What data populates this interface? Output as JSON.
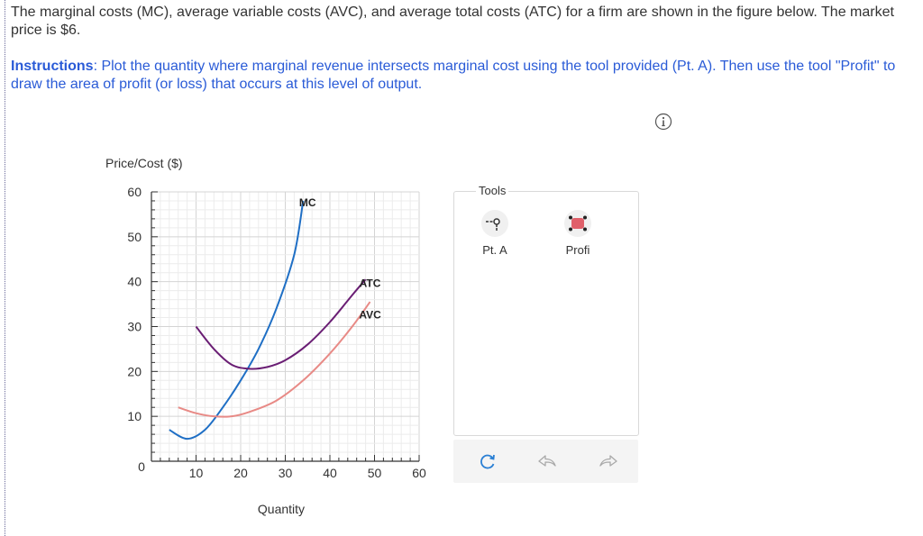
{
  "question": {
    "text": "The marginal costs (MC), average variable costs (AVC), and average total costs (ATC) for a firm are shown in the figure below. The market price is $6."
  },
  "instructions": {
    "lead": "Instructions",
    "text": ": Plot the quantity where marginal revenue intersects marginal cost using the tool provided (Pt. A). Then use the tool \"Profit\" to draw the area of profit (or loss) that occurs at this level of output."
  },
  "info_icon": "info-circle-icon",
  "tools": {
    "title": "Tools",
    "items": [
      {
        "label": "Pt. A",
        "icon": "point-tool-icon"
      },
      {
        "label": "Profi",
        "icon": "profit-area-tool-icon"
      }
    ],
    "actions": [
      {
        "name": "reset",
        "icon": "reset-icon"
      },
      {
        "name": "undo",
        "icon": "undo-icon"
      },
      {
        "name": "redo",
        "icon": "redo-icon"
      }
    ]
  },
  "chart_data": {
    "type": "line",
    "ylabel": "Price/Cost ($)",
    "xlabel": "Quantity",
    "xlim": [
      0,
      60
    ],
    "ylim": [
      0,
      60
    ],
    "x_ticks": [
      10,
      20,
      30,
      40,
      50,
      60
    ],
    "y_ticks": [
      10,
      20,
      30,
      40,
      50,
      60
    ],
    "origin_label": "0",
    "grid": true,
    "series": [
      {
        "name": "MC",
        "color": "#1f6fc5",
        "points": [
          [
            4,
            7
          ],
          [
            8,
            5
          ],
          [
            12,
            7
          ],
          [
            16,
            12
          ],
          [
            20,
            18
          ],
          [
            24,
            25
          ],
          [
            28,
            34
          ],
          [
            32,
            46
          ],
          [
            34,
            58
          ]
        ]
      },
      {
        "name": "ATC",
        "color": "#6a1e74",
        "points": [
          [
            10,
            30
          ],
          [
            14,
            25
          ],
          [
            18,
            21.5
          ],
          [
            22,
            20.6
          ],
          [
            26,
            21
          ],
          [
            30,
            22.5
          ],
          [
            35,
            26
          ],
          [
            40,
            31
          ],
          [
            45,
            37
          ],
          [
            48,
            40.5
          ]
        ]
      },
      {
        "name": "AVC",
        "color": "#e88a86",
        "points": [
          [
            6,
            12
          ],
          [
            10,
            10.7
          ],
          [
            14,
            10
          ],
          [
            18,
            10
          ],
          [
            22,
            11
          ],
          [
            28,
            13.5
          ],
          [
            34,
            18
          ],
          [
            40,
            24
          ],
          [
            45,
            30
          ],
          [
            49,
            35.5
          ]
        ]
      }
    ],
    "curve_labels": [
      {
        "text": "MC",
        "x": 35,
        "y": 58
      },
      {
        "text": "ATC",
        "x": 49,
        "y": 40
      },
      {
        "text": "AVC",
        "x": 49,
        "y": 33
      }
    ]
  }
}
